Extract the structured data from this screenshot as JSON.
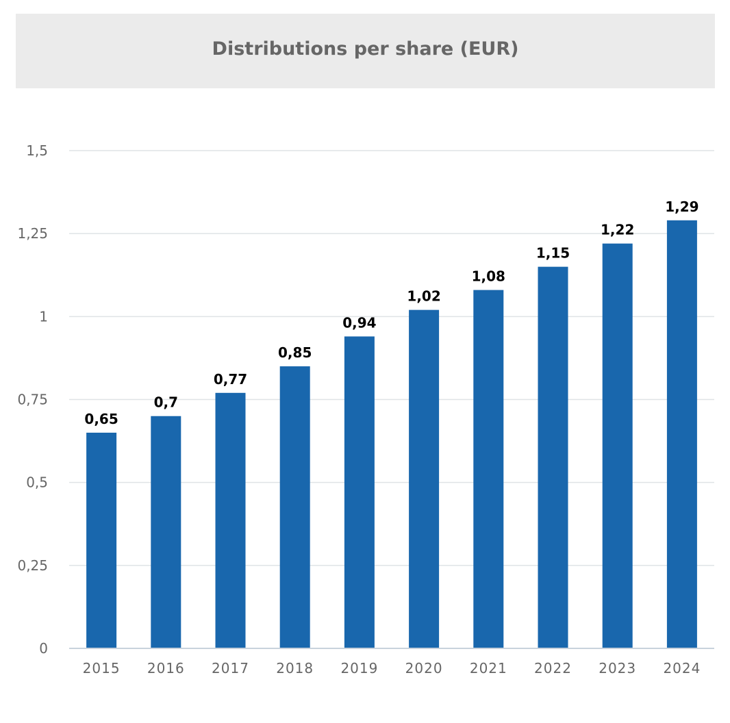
{
  "chart_data": {
    "type": "bar",
    "title": "Distributions per share (EUR)",
    "categories": [
      "2015",
      "2016",
      "2017",
      "2018",
      "2019",
      "2020",
      "2021",
      "2022",
      "2023",
      "2024"
    ],
    "values": [
      0.65,
      0.7,
      0.77,
      0.85,
      0.94,
      1.02,
      1.08,
      1.15,
      1.22,
      1.29
    ],
    "data_labels": [
      "0,65",
      "0,7",
      "0,77",
      "0,85",
      "0,94",
      "1,02",
      "1,08",
      "1,15",
      "1,22",
      "1,29"
    ],
    "yticks": [
      0,
      0.25,
      0.5,
      0.75,
      1,
      1.25,
      1.5
    ],
    "ytick_labels": [
      "0",
      "0,25",
      "0,5",
      "0,75",
      "1",
      "1,25",
      "1,5"
    ],
    "ylim": [
      0,
      1.5
    ],
    "xlabel": "",
    "ylabel": "",
    "grid": true,
    "legend": "none",
    "colors": {
      "bar": "#1967ad",
      "grid": "#dfe3e6",
      "axis": "#c8d2dc",
      "title_bg": "#ebebeb",
      "title_text": "#666666",
      "tick_text": "#666666",
      "label_text": "#000000"
    }
  }
}
